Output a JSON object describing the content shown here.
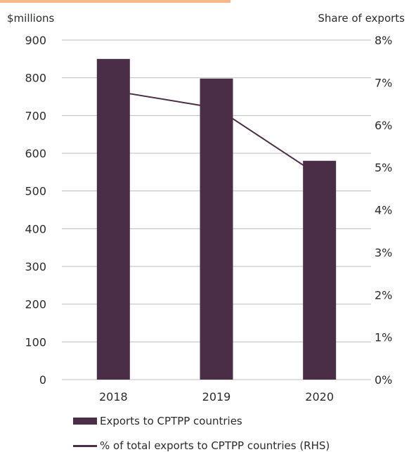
{
  "colors": {
    "accent": "#f6b98c",
    "bar": "#4a2e47",
    "line": "#4a2e47",
    "grid": "#bdbdbd"
  },
  "chart_data": {
    "type": "bar",
    "categories": [
      "2018",
      "2019",
      "2020"
    ],
    "series": [
      {
        "name": "Exports to CPTPP countries",
        "type": "bar",
        "axis": "left",
        "values": [
          850,
          798,
          580
        ]
      },
      {
        "name": "% of total exports to CPTPP countries (RHS)",
        "type": "line",
        "axis": "right",
        "values": [
          6.8,
          6.4,
          4.8
        ]
      }
    ],
    "ylabel": "$millions",
    "ylabel_right": "Share of exports",
    "ylim": [
      0,
      900
    ],
    "ylim_right": [
      0,
      8
    ],
    "yticks": [
      "0",
      "100",
      "200",
      "300",
      "400",
      "500",
      "600",
      "700",
      "800",
      "900"
    ],
    "yticks_right": [
      "0%",
      "1%",
      "2%",
      "3%",
      "4%",
      "5%",
      "6%",
      "7%",
      "8%"
    ],
    "grid": true,
    "legend": "bottom"
  }
}
